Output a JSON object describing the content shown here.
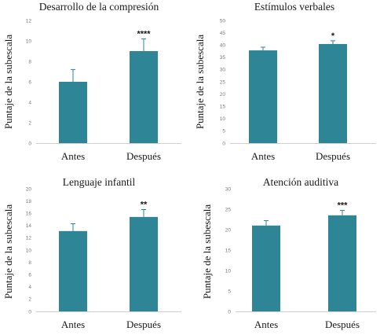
{
  "chart_data": [
    {
      "type": "bar",
      "title": "Desarrollo de la compresión",
      "ylabel": "Puntaje de la subescala",
      "categories": [
        "Antes",
        "Después"
      ],
      "values": [
        6.0,
        9.0
      ],
      "errors": [
        1.2,
        1.2
      ],
      "annotations": [
        "",
        "****"
      ],
      "ylim": [
        0,
        12
      ],
      "yticks": [
        "0",
        "2",
        "4",
        "6",
        "8",
        "10",
        "12"
      ],
      "bar_color": "#2e8596"
    },
    {
      "type": "bar",
      "title": "Estímulos verbales",
      "ylabel": "Puntaje de la subescala",
      "categories": [
        "Antes",
        "Después"
      ],
      "values": [
        37.8,
        40.4
      ],
      "errors": [
        1.3,
        1.3
      ],
      "annotations": [
        "",
        "*"
      ],
      "ylim": [
        0,
        50
      ],
      "yticks": [
        "0",
        "5",
        "10",
        "15",
        "20",
        "25",
        "30",
        "35",
        "40",
        "45",
        "50"
      ],
      "bar_color": "#2e8596"
    },
    {
      "type": "bar",
      "title": "Lenguaje infantil",
      "ylabel": "Puntaje de la subescala",
      "categories": [
        "Antes",
        "Después"
      ],
      "values": [
        13.1,
        15.4
      ],
      "errors": [
        1.2,
        1.2
      ],
      "annotations": [
        "",
        "**"
      ],
      "ylim": [
        0,
        20
      ],
      "yticks": [
        "0",
        "2",
        "4",
        "6",
        "8",
        "10",
        "12",
        "14",
        "16",
        "18",
        "20"
      ],
      "bar_color": "#2e8596"
    },
    {
      "type": "bar",
      "title": "Atención auditiva",
      "ylabel": "Puntaje de la subescala",
      "categories": [
        "Antes",
        "Después"
      ],
      "values": [
        21.0,
        23.5
      ],
      "errors": [
        1.2,
        1.2
      ],
      "annotations": [
        "",
        "***"
      ],
      "ylim": [
        0,
        30
      ],
      "yticks": [
        "0",
        "5",
        "10",
        "15",
        "20",
        "25",
        "30"
      ],
      "bar_color": "#2e8596"
    }
  ]
}
